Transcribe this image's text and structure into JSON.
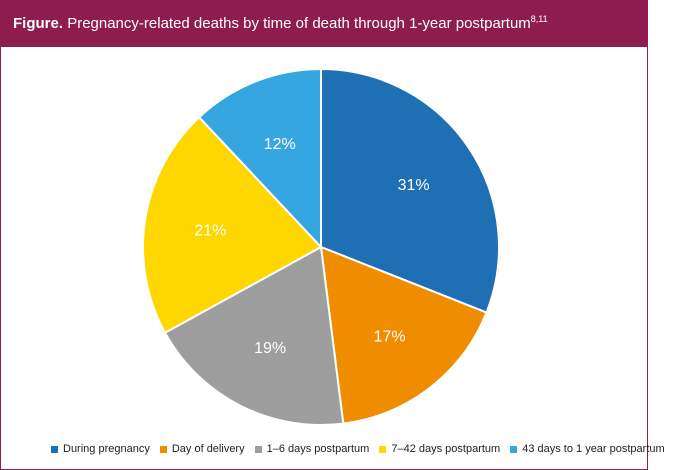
{
  "figure_header": {
    "lead": "Figure.",
    "title": "Pregnancy-related deaths by time of death through 1-year postpartum",
    "superscript": "8,11"
  },
  "chart_data": {
    "type": "pie",
    "title": "Pregnancy-related deaths by time of death through 1-year postpartum",
    "categories": [
      "During pregnancy",
      "Day of delivery",
      "1–6 days postpartum",
      "7–42 days postpartum",
      "43 days to 1 year postpartum"
    ],
    "values": [
      31,
      17,
      19,
      21,
      12
    ],
    "data_labels": [
      "31%",
      "17%",
      "19%",
      "21%",
      "12%"
    ],
    "colors": [
      "#1f6fb5",
      "#ef8c00",
      "#9e9e9e",
      "#ffd700",
      "#36a6e0"
    ],
    "legend_position": "bottom",
    "start_angle_deg": 0,
    "direction": "clockwise"
  }
}
